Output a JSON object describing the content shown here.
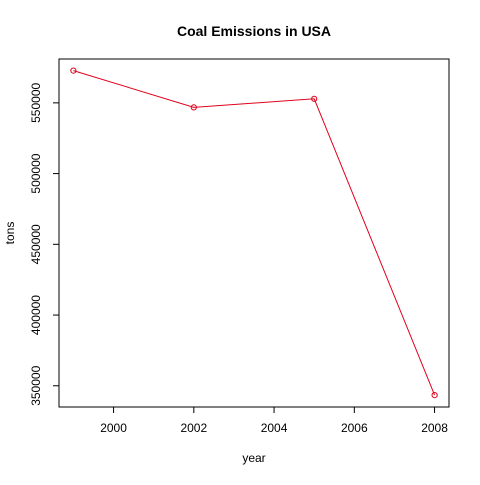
{
  "chart_data": {
    "type": "line",
    "title": "Coal Emissions in USA",
    "xlabel": "year",
    "ylabel": "tons",
    "x": [
      1999,
      2002,
      2005,
      2008
    ],
    "values": [
      572832,
      546789,
      552881,
      343432
    ],
    "xlim": [
      1998.64,
      2008.36
    ],
    "ylim": [
      335000,
      581000
    ],
    "xticks": [
      2000,
      2002,
      2004,
      2006,
      2008
    ],
    "yticks": [
      350000,
      400000,
      450000,
      500000,
      550000
    ],
    "xtick_labels": [
      "2000",
      "2002",
      "2004",
      "2006",
      "2008"
    ],
    "ytick_labels": [
      "350000",
      "400000",
      "450000",
      "500000",
      "550000"
    ],
    "grid": false,
    "marker": "open-circle",
    "line_color": "#e0001b",
    "axis_color": "#000000"
  }
}
